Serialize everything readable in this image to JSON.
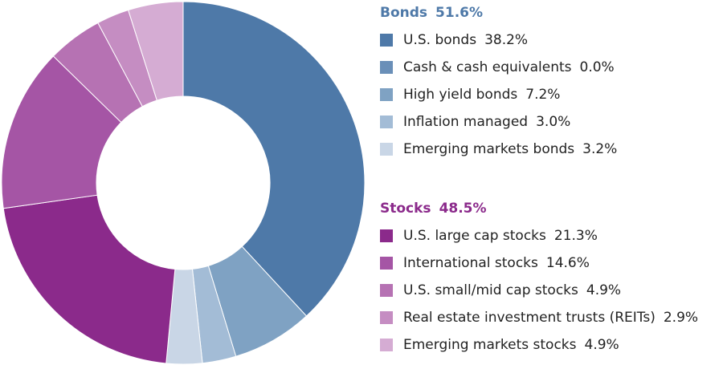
{
  "chart_data": {
    "type": "donut",
    "groups": [
      {
        "name": "Bonds",
        "value": 51.6,
        "value_label": "51.6%",
        "color": "#4e79a8",
        "categories": [
          "U.S. bonds",
          "Cash & cash equivalents",
          "High yield bonds",
          "Inflation managed",
          "Emerging markets bonds"
        ],
        "values": [
          38.2,
          0.0,
          7.2,
          3.0,
          3.2
        ],
        "value_labels": [
          "38.2%",
          "0.0%",
          "7.2%",
          "3.0%",
          "3.2%"
        ],
        "colors": [
          "#4e79a8",
          "#6a8fb8",
          "#7fa2c3",
          "#a3bcd6",
          "#c9d6e6"
        ]
      },
      {
        "name": "Stocks",
        "value": 48.5,
        "value_label": "48.5%",
        "color": "#8b2a8b",
        "categories": [
          "U.S. large cap stocks",
          "International stocks",
          "U.S. small/mid cap stocks",
          "Real estate investment trusts (REITs)",
          "Emerging markets stocks"
        ],
        "values": [
          21.3,
          14.6,
          4.9,
          2.9,
          4.9
        ],
        "value_labels": [
          "21.3%",
          "14.6%",
          "4.9%",
          "2.9%",
          "4.9%"
        ],
        "colors": [
          "#8b2a8b",
          "#a555a5",
          "#b672b3",
          "#c58dc2",
          "#d5acd3"
        ]
      }
    ]
  }
}
